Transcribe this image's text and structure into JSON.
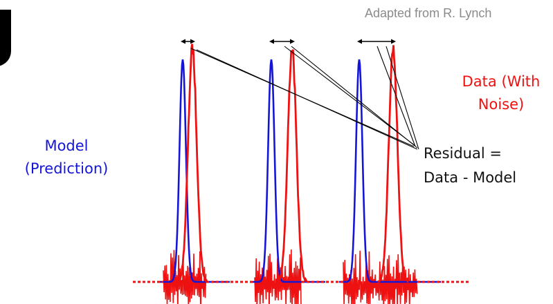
{
  "credit": "Adapted from R. Lynch",
  "model_label": {
    "line1": "Model",
    "line2": "(Prediction)"
  },
  "data_label": {
    "line1": "Data (With",
    "line2": "Noise)"
  },
  "residual_label": {
    "line1": "Residual =",
    "line2": "Data - Model"
  },
  "colors": {
    "model": "#1515d6",
    "data": "#ee1111",
    "credit": "#8a8a8a",
    "arrows": "#000000"
  },
  "pulses": {
    "count": 3,
    "baseline": "dotted",
    "offset_arrows_grow_left_to_right": true
  }
}
